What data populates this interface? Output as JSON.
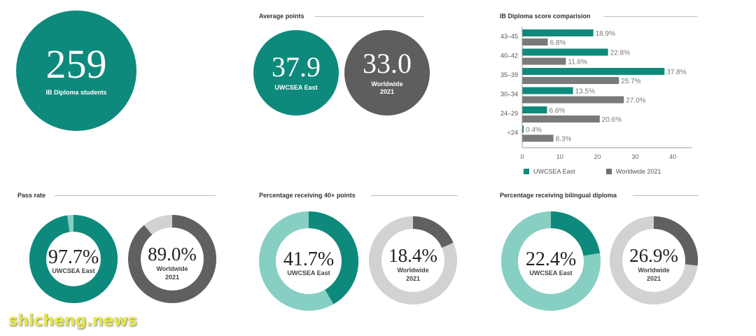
{
  "students": {
    "value": "259",
    "label": "IB Diploma students"
  },
  "average_points": {
    "title": "Average points",
    "east": {
      "value": "37.9",
      "label": "UWCSEA East"
    },
    "world": {
      "value": "33.0",
      "label": "Worldwide",
      "year": "2021"
    }
  },
  "comparison": {
    "title": "IB Diploma score comparision",
    "legend": {
      "east": "UWCSEA East",
      "world": "Worldwide 2021"
    }
  },
  "pass_rate": {
    "title": "Pass rate",
    "east": {
      "value": "97.7%",
      "label": "UWCSEA East"
    },
    "world": {
      "value": "89.0%",
      "label": "Worldwide",
      "year": "2021"
    }
  },
  "forty_plus": {
    "title": "Percentage receiving 40+ points",
    "east": {
      "value": "41.7%",
      "label": "UWCSEA East"
    },
    "world": {
      "value": "18.4%",
      "label": "Worldwide",
      "year": "2021"
    }
  },
  "bilingual": {
    "title": "Percentage receiving bilingual diploma",
    "east": {
      "value": "22.4%",
      "label": "UWCSEA East"
    },
    "world": {
      "value": "26.9%",
      "label": "Worldwide",
      "year": "2021"
    }
  },
  "watermark": "shicheng.news",
  "colors": {
    "teal": "#0e8a7c",
    "teal_light": "#87cfc2",
    "grey_dark": "#606060",
    "grey_light": "#d2d2d2",
    "grey_bar": "#7a7a7a"
  },
  "chart_data": [
    {
      "type": "bar",
      "orientation": "horizontal",
      "title": "IB Diploma score comparision",
      "categories": [
        "43–45",
        "40–42",
        "35–39",
        "30–34",
        "24–29",
        "<24"
      ],
      "series": [
        {
          "name": "UWCSEA East",
          "values": [
            18.9,
            22.8,
            37.8,
            13.5,
            6.6,
            0.4
          ],
          "labels": [
            "18.9%",
            "22.8%",
            "37.8%",
            "13.5%",
            "6.6%",
            "0.4%"
          ]
        },
        {
          "name": "Worldwide 2021",
          "values": [
            6.8,
            11.6,
            25.7,
            27.0,
            20.6,
            8.3
          ],
          "labels": [
            "6.8%",
            "11.6%",
            "25.7%",
            "27.0%",
            "20.6%",
            "8.3%"
          ]
        }
      ],
      "xticks": [
        "0",
        "10",
        "20",
        "30",
        "40"
      ],
      "xlim": [
        0,
        45
      ],
      "legend": "bottom"
    },
    {
      "type": "pie",
      "title": "Pass rate",
      "series": [
        {
          "name": "UWCSEA East",
          "value": 97.7
        },
        {
          "name": "Worldwide",
          "value": 89.0
        }
      ]
    },
    {
      "type": "pie",
      "title": "Percentage receiving 40+ points",
      "series": [
        {
          "name": "UWCSEA East",
          "value": 41.7
        },
        {
          "name": "Worldwide",
          "value": 18.4
        }
      ]
    },
    {
      "type": "pie",
      "title": "Percentage receiving bilingual diploma",
      "series": [
        {
          "name": "UWCSEA East",
          "value": 22.4
        },
        {
          "name": "Worldwide",
          "value": 26.9
        }
      ]
    }
  ]
}
